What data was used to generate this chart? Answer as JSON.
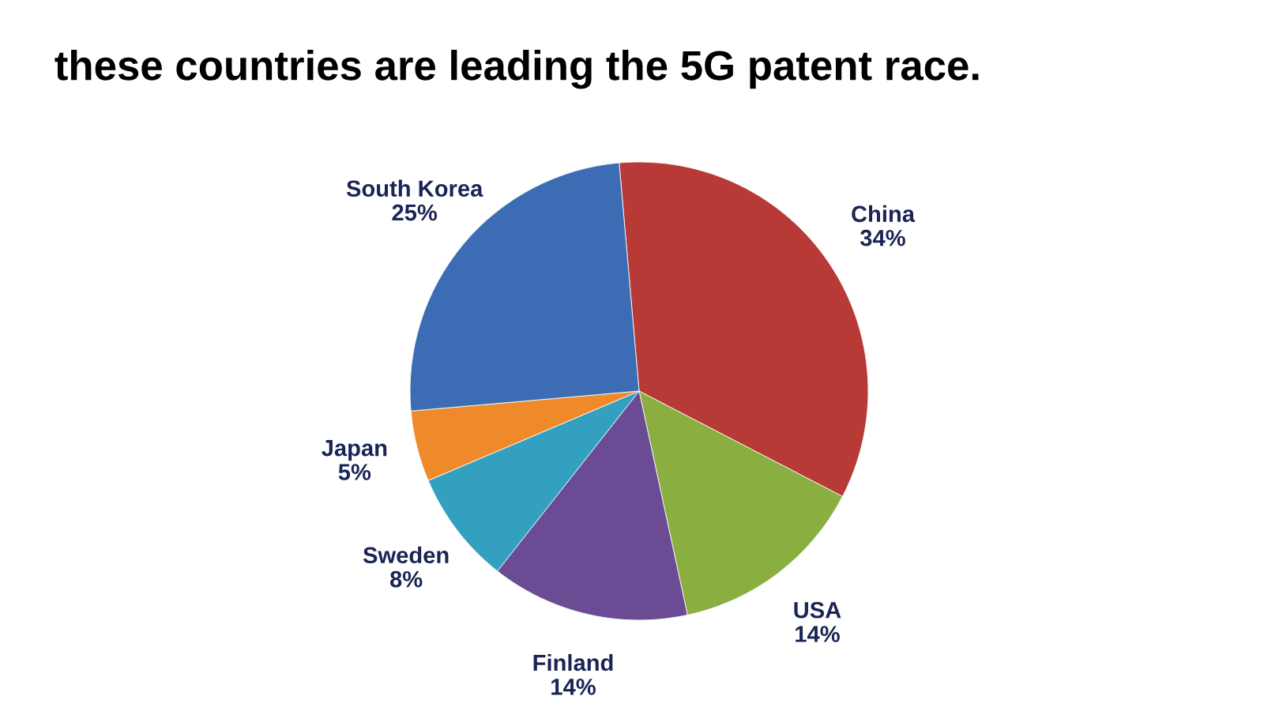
{
  "chart_data": {
    "type": "pie",
    "title": "these countries are leading the 5G patent race.",
    "categories": [
      "China",
      "USA",
      "Finland",
      "Sweden",
      "Japan",
      "South Korea"
    ],
    "values": [
      34,
      14,
      14,
      8,
      5,
      25
    ],
    "value_labels": [
      "34%",
      "14%",
      "14%",
      "8%",
      "5%",
      "25%"
    ],
    "colors": [
      "#b83a36",
      "#8aae3f",
      "#6b4c94",
      "#33a0bf",
      "#ef8a2b",
      "#3c6db4"
    ]
  }
}
